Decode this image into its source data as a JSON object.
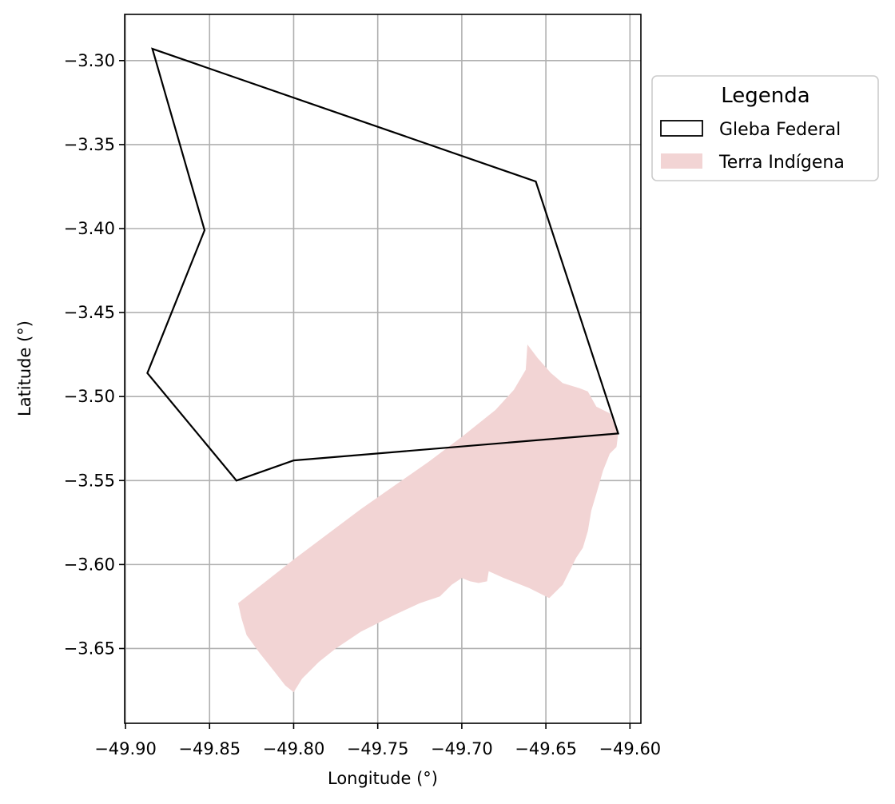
{
  "chart_data": {
    "type": "map",
    "xlabel": "Longitude (°)",
    "ylabel": "Latitude (°)",
    "xlim": [
      -49.9005,
      -49.5935
    ],
    "ylim": [
      -3.6945,
      -3.2725
    ],
    "x_ticks": [
      -49.9,
      -49.85,
      -49.8,
      -49.75,
      -49.7,
      -49.65,
      -49.6
    ],
    "x_tick_labels": [
      "−49.90",
      "−49.85",
      "−49.80",
      "−49.75",
      "−49.70",
      "−49.65",
      "−49.60"
    ],
    "y_ticks": [
      -3.3,
      -3.35,
      -3.4,
      -3.45,
      -3.5,
      -3.55,
      -3.6,
      -3.65
    ],
    "y_tick_labels": [
      "−3.30",
      "−3.35",
      "−3.40",
      "−3.45",
      "−3.50",
      "−3.55",
      "−3.60",
      "−3.65"
    ],
    "grid": true,
    "legend": {
      "title": "Legenda",
      "placement": "outside-top-right",
      "entries": [
        {
          "label": "Gleba Federal",
          "style": "outline",
          "color": "#000000"
        },
        {
          "label": "Terra Indígena",
          "style": "fill",
          "color": "#f2d4d4"
        }
      ]
    },
    "series": [
      {
        "name": "Gleba Federal",
        "kind": "polygon-outline",
        "color": "#000000",
        "coordinates": [
          [
            -49.884,
            -3.293
          ],
          [
            -49.656,
            -3.372
          ],
          [
            -49.607,
            -3.522
          ],
          [
            -49.8,
            -3.538
          ],
          [
            -49.834,
            -3.55
          ],
          [
            -49.887,
            -3.486
          ],
          [
            -49.853,
            -3.401
          ],
          [
            -49.884,
            -3.293
          ]
        ]
      },
      {
        "name": "Terra Indígena",
        "kind": "polygon-fill",
        "color": "#f2d4d4",
        "coordinates": [
          [
            -49.661,
            -3.469
          ],
          [
            -49.655,
            -3.477
          ],
          [
            -49.647,
            -3.486
          ],
          [
            -49.64,
            -3.492
          ],
          [
            -49.63,
            -3.495
          ],
          [
            -49.625,
            -3.497
          ],
          [
            -49.62,
            -3.506
          ],
          [
            -49.612,
            -3.51
          ],
          [
            -49.607,
            -3.522
          ],
          [
            -49.608,
            -3.53
          ],
          [
            -49.612,
            -3.534
          ],
          [
            -49.616,
            -3.544
          ],
          [
            -49.62,
            -3.558
          ],
          [
            -49.623,
            -3.568
          ],
          [
            -49.625,
            -3.58
          ],
          [
            -49.628,
            -3.59
          ],
          [
            -49.632,
            -3.596
          ],
          [
            -49.634,
            -3.6
          ],
          [
            -49.64,
            -3.612
          ],
          [
            -49.645,
            -3.617
          ],
          [
            -49.648,
            -3.62
          ],
          [
            -49.66,
            -3.614
          ],
          [
            -49.675,
            -3.608
          ],
          [
            -49.684,
            -3.604
          ],
          [
            -49.685,
            -3.61
          ],
          [
            -49.69,
            -3.611
          ],
          [
            -49.695,
            -3.61
          ],
          [
            -49.7,
            -3.608
          ],
          [
            -49.706,
            -3.612
          ],
          [
            -49.713,
            -3.619
          ],
          [
            -49.725,
            -3.623
          ],
          [
            -49.74,
            -3.63
          ],
          [
            -49.76,
            -3.64
          ],
          [
            -49.775,
            -3.65
          ],
          [
            -49.785,
            -3.658
          ],
          [
            -49.795,
            -3.668
          ],
          [
            -49.8,
            -3.676
          ],
          [
            -49.805,
            -3.672
          ],
          [
            -49.812,
            -3.663
          ],
          [
            -49.82,
            -3.653
          ],
          [
            -49.828,
            -3.642
          ],
          [
            -49.831,
            -3.632
          ],
          [
            -49.833,
            -3.623
          ],
          [
            -49.8,
            -3.597
          ],
          [
            -49.76,
            -3.567
          ],
          [
            -49.72,
            -3.539
          ],
          [
            -49.7,
            -3.524
          ],
          [
            -49.68,
            -3.508
          ],
          [
            -49.669,
            -3.496
          ],
          [
            -49.662,
            -3.484
          ],
          [
            -49.661,
            -3.469
          ]
        ]
      }
    ]
  }
}
